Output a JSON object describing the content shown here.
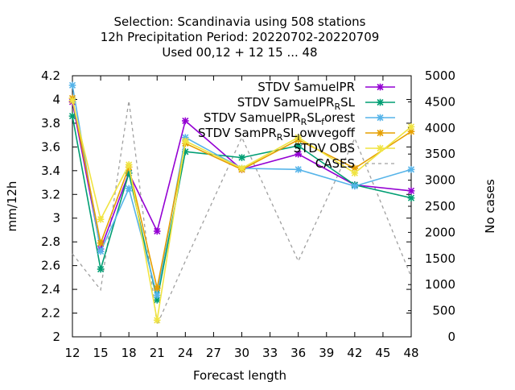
{
  "chart_data": {
    "type": "line",
    "title_lines": [
      "Selection: Scandinavia using   508 stations",
      "12h Precipitation    Period: 20220702-20220709",
      "Used  00,12  + 12 15 ... 48"
    ],
    "xlabel": "Forecast length",
    "ylabel": "mm/12h",
    "y2label": "No cases",
    "x": [
      12,
      15,
      18,
      21,
      24,
      30,
      36,
      42,
      48
    ],
    "xticks": [
      "12",
      "15",
      "18",
      "21",
      "24",
      "27",
      "30",
      "33",
      "36",
      "39",
      "42",
      "45",
      "48"
    ],
    "xlim": [
      12,
      48
    ],
    "ylim": [
      2,
      4.2
    ],
    "yticks": [
      "2",
      "2.2",
      "2.4",
      "2.6",
      "2.8",
      "3",
      "3.2",
      "3.4",
      "3.6",
      "3.8",
      "4",
      "4.2"
    ],
    "y2lim": [
      0,
      5000
    ],
    "y2ticks": [
      "0",
      "500",
      "1000",
      "1500",
      "2000",
      "2500",
      "3000",
      "3500",
      "4000",
      "4500",
      "5000"
    ],
    "legend_position": "top-right",
    "series": [
      {
        "name": "STDV SamuelPR",
        "label_parts": [
          "STDV SamuelPR"
        ],
        "color": "#9400d3",
        "axis": "y",
        "values": [
          3.98,
          2.74,
          3.38,
          2.89,
          3.82,
          3.41,
          3.54,
          3.28,
          3.23
        ]
      },
      {
        "name": "STDV SamuelPR_RSL",
        "label_parts": [
          "STDV SamuelPR",
          "R",
          "SL"
        ],
        "color": "#009e73",
        "axis": "y",
        "values": [
          3.86,
          2.57,
          3.38,
          2.31,
          3.56,
          3.51,
          3.61,
          3.28,
          3.17
        ]
      },
      {
        "name": "STDV SamuelPR_RSL_forest",
        "label_parts": [
          "STDV SamuelPR",
          "R",
          "SL",
          "f",
          "orest"
        ],
        "color": "#56b4e9",
        "axis": "y",
        "values": [
          4.12,
          2.72,
          3.25,
          2.35,
          3.68,
          3.42,
          3.41,
          3.27,
          3.41
        ]
      },
      {
        "name": "STDV SamPR_RSL_lowvegoff",
        "label_parts": [
          "STDV SamPR",
          "R",
          "SL",
          "l",
          "owvegoff"
        ],
        "color": "#e69f00",
        "axis": "y",
        "values": [
          4.01,
          2.79,
          3.43,
          2.41,
          3.63,
          3.41,
          3.66,
          3.42,
          3.73
        ]
      },
      {
        "name": "STDV OBS",
        "label_parts": [
          "STDV OBS"
        ],
        "color": "#f0e442",
        "axis": "y",
        "values": [
          3.99,
          2.99,
          3.45,
          2.14,
          3.65,
          3.42,
          3.68,
          3.38,
          3.77
        ]
      },
      {
        "name": "CASES",
        "label_parts": [
          "CASES"
        ],
        "color": "#a0a0a0",
        "axis": "y2",
        "dashed": true,
        "values": [
          1590,
          900,
          4520,
          230,
          1450,
          3820,
          1450,
          3800,
          1150
        ]
      }
    ]
  }
}
